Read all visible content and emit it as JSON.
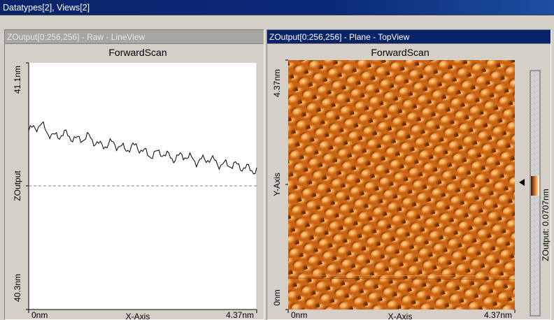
{
  "window": {
    "title": "Datatypes[2], Views[2]"
  },
  "left_view": {
    "header": "ZOutput[0:256,256] - Raw - LineView",
    "plot_title": "ForwardScan",
    "y_top_label": "41.1nm",
    "y_mid_label": "ZOutput",
    "y_bottom_label": "40.3nm",
    "x_left_label": "0nm",
    "x_mid_label": "X-Axis",
    "x_right_label": "4.37nm"
  },
  "right_view": {
    "header": "ZOutput[0:256,256] - Plane - TopView",
    "plot_title": "ForwardScan",
    "y_top_label": "4.37nm",
    "y_mid_label": "Y-Axis",
    "y_bottom_label": "0nm",
    "x_left_label": "0nm",
    "x_mid_label": "X-Axis",
    "x_right_label": "4.37nm",
    "colorbar_label": "ZOutput: 0.0707nm"
  },
  "colors": {
    "title_bar": "#0a246a",
    "inactive_header": "#a8a6a0",
    "image_base": "#c86414",
    "image_highlight": "#ffcc80",
    "image_shadow": "#5a2800"
  },
  "chart_data": {
    "type": "line",
    "title": "ForwardScan",
    "xlabel": "X-Axis",
    "ylabel": "ZOutput",
    "xlim": [
      0,
      4.37
    ],
    "ylim": [
      40.3,
      41.1
    ],
    "x": [
      0,
      0.23,
      0.46,
      0.69,
      0.92,
      1.15,
      1.38,
      1.61,
      1.84,
      2.07,
      2.3,
      2.53,
      2.76,
      2.99,
      3.22,
      3.45,
      3.68,
      3.91,
      4.14,
      4.37
    ],
    "y": [
      40.88,
      40.9,
      40.86,
      40.87,
      40.85,
      40.86,
      40.83,
      40.84,
      40.82,
      40.83,
      40.8,
      40.81,
      40.79,
      40.8,
      40.78,
      40.79,
      40.77,
      40.77,
      40.76,
      40.75
    ]
  }
}
